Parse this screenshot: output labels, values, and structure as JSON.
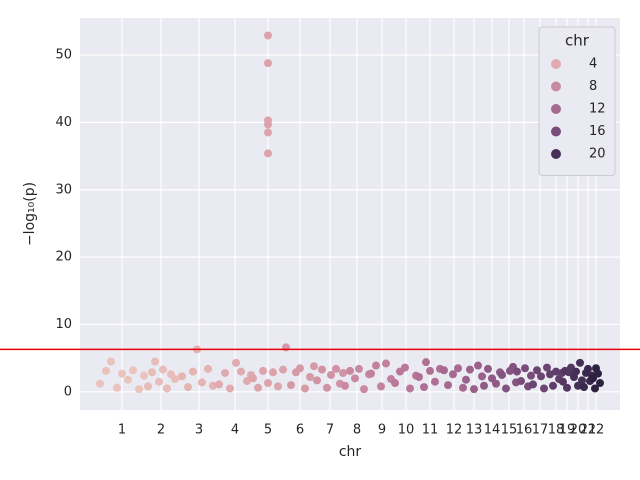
{
  "chart_data": {
    "type": "scatter",
    "x_label": "chr",
    "y_label": "−log₁₀(p)",
    "xlim": [
      0,
      540
    ],
    "ylim": [
      -2.7,
      55.5
    ],
    "xticks": [
      {
        "value": 42,
        "label": "1"
      },
      {
        "value": 81,
        "label": "2"
      },
      {
        "value": 119,
        "label": "3"
      },
      {
        "value": 155,
        "label": "4"
      },
      {
        "value": 188,
        "label": "5"
      },
      {
        "value": 220,
        "label": "6"
      },
      {
        "value": 250,
        "label": "7"
      },
      {
        "value": 277,
        "label": "8"
      },
      {
        "value": 302,
        "label": "9"
      },
      {
        "value": 326,
        "label": "10"
      },
      {
        "value": 350,
        "label": "11"
      },
      {
        "value": 374,
        "label": "12"
      },
      {
        "value": 394,
        "label": "13"
      },
      {
        "value": 412,
        "label": "14"
      },
      {
        "value": 429,
        "label": "15"
      },
      {
        "value": 444,
        "label": "16"
      },
      {
        "value": 460,
        "label": "17"
      },
      {
        "value": 476,
        "label": "18"
      },
      {
        "value": 487,
        "label": "19"
      },
      {
        "value": 498,
        "label": "20"
      },
      {
        "value": 508,
        "label": "21"
      },
      {
        "value": 516,
        "label": "22"
      }
    ],
    "yticks": [
      0,
      10,
      20,
      30,
      40,
      50
    ],
    "grid": true,
    "threshold": 6.3,
    "threshold_color": "#e8000b",
    "legend": {
      "title": "chr",
      "position": "upper right",
      "items": [
        {
          "label": "4",
          "color": "#e0abaf"
        },
        {
          "label": "8",
          "color": "#c989a0"
        },
        {
          "label": "12",
          "color": "#a66990"
        },
        {
          "label": "16",
          "color": "#794c79"
        },
        {
          "label": "20",
          "color": "#463057"
        }
      ]
    },
    "series": [
      {
        "color": "#ebc3bd",
        "x": [
          20,
          26,
          31,
          37,
          42,
          48,
          53,
          59,
          64
        ],
        "values": [
          1.2,
          3.1,
          4.5,
          0.6,
          2.7,
          1.8,
          3.2,
          0.4,
          2.4
        ]
      },
      {
        "color": "#e8bcb8",
        "x": [
          68,
          72,
          75,
          79,
          83,
          87,
          91,
          95
        ],
        "values": [
          0.8,
          2.9,
          4.5,
          1.5,
          3.3,
          0.5,
          2.6,
          1.9
        ]
      },
      {
        "color": "#e4b4b3",
        "x": [
          102,
          108,
          113,
          117,
          122,
          128,
          133
        ],
        "values": [
          2.3,
          0.7,
          3.0,
          6.3,
          1.4,
          3.4,
          0.9
        ]
      },
      {
        "color": "#e0abaf",
        "x": [
          139,
          145,
          150,
          156,
          161,
          167,
          171
        ],
        "values": [
          1.1,
          2.8,
          0.5,
          4.3,
          3.0,
          1.6,
          2.5
        ]
      },
      {
        "color": "#dca3ab",
        "x": [
          173,
          178,
          183,
          188,
          188,
          188,
          188,
          188,
          188,
          188,
          193,
          198,
          203
        ],
        "values": [
          2.0,
          0.6,
          3.1,
          52.9,
          48.8,
          40.3,
          39.7,
          38.5,
          35.4,
          1.3,
          2.9,
          0.8,
          3.3
        ]
      },
      {
        "color": "#d69aa7",
        "x": [
          206,
          211,
          216,
          220,
          225,
          230,
          234
        ],
        "values": [
          6.6,
          1.0,
          2.9,
          3.5,
          0.5,
          2.2,
          3.8
        ]
      },
      {
        "color": "#d092a4",
        "x": [
          237,
          242,
          247,
          251,
          256,
          260,
          263
        ],
        "values": [
          1.7,
          3.3,
          0.6,
          2.5,
          3.4,
          1.2,
          2.8
        ]
      },
      {
        "color": "#c989a0",
        "x": [
          265,
          270,
          275,
          279,
          284,
          289
        ],
        "values": [
          0.9,
          3.1,
          2.0,
          3.4,
          0.4,
          2.6
        ]
      },
      {
        "color": "#c1819d",
        "x": [
          291,
          296,
          301,
          306,
          311
        ],
        "values": [
          2.7,
          3.9,
          0.8,
          4.2,
          1.9
        ]
      },
      {
        "color": "#b97899",
        "x": [
          315,
          320,
          325,
          330,
          336
        ],
        "values": [
          1.3,
          3.0,
          3.6,
          0.5,
          2.4
        ]
      },
      {
        "color": "#b07095",
        "x": [
          339,
          344,
          346,
          350,
          355,
          360
        ],
        "values": [
          2.2,
          0.7,
          4.4,
          3.1,
          1.5,
          3.4
        ]
      },
      {
        "color": "#a66990",
        "x": [
          364,
          368,
          373,
          378,
          383
        ],
        "values": [
          3.2,
          1.0,
          2.6,
          3.5,
          0.6
        ]
      },
      {
        "color": "#9b618b",
        "x": [
          386,
          390,
          394,
          398,
          402
        ],
        "values": [
          1.8,
          3.3,
          0.4,
          3.9,
          2.3
        ]
      },
      {
        "color": "#905a86",
        "x": [
          404,
          408,
          412,
          416,
          420
        ],
        "values": [
          0.9,
          3.4,
          2.0,
          1.2,
          2.9
        ]
      },
      {
        "color": "#855380",
        "x": [
          422,
          426,
          430,
          433,
          436
        ],
        "values": [
          2.5,
          0.5,
          3.1,
          3.7,
          1.4
        ]
      },
      {
        "color": "#794c79",
        "x": [
          437,
          441,
          445,
          448,
          451
        ],
        "values": [
          3.0,
          1.6,
          3.5,
          0.8,
          2.4
        ]
      },
      {
        "color": "#6d4572",
        "x": [
          453,
          457,
          461,
          464,
          467
        ],
        "values": [
          1.1,
          3.2,
          2.3,
          0.5,
          3.6
        ]
      },
      {
        "color": "#603e6a",
        "x": [
          470,
          473,
          476,
          479,
          482
        ],
        "values": [
          2.6,
          0.9,
          3.0,
          1.9,
          2.8
        ]
      },
      {
        "color": "#533761",
        "x": [
          483,
          485,
          487,
          489,
          491
        ],
        "values": [
          1.5,
          3.1,
          0.6,
          2.9,
          3.6
        ]
      },
      {
        "color": "#463057",
        "x": [
          494,
          496,
          498,
          500,
          502
        ],
        "values": [
          2.2,
          3.0,
          0.9,
          4.3,
          1.7
        ]
      },
      {
        "color": "#3a294c",
        "x": [
          504,
          506,
          508,
          510,
          512
        ],
        "values": [
          0.7,
          2.8,
          3.4,
          1.6,
          2.4
        ]
      },
      {
        "color": "#2e2241",
        "x": [
          513,
          515,
          516,
          518,
          520
        ],
        "values": [
          2.0,
          0.5,
          3.5,
          2.7,
          1.3
        ]
      }
    ]
  }
}
